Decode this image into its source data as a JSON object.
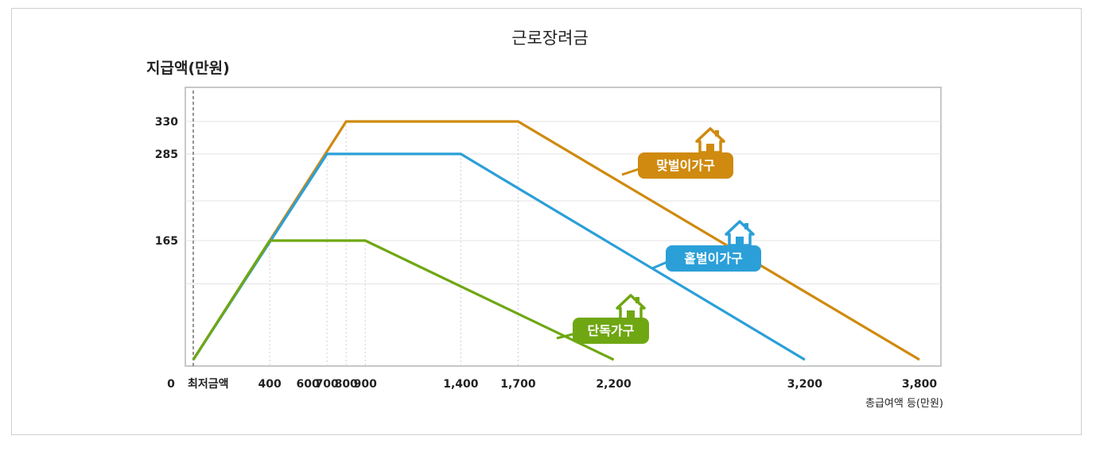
{
  "chart_data": {
    "type": "line",
    "title": "근로장려금",
    "ylabel": "지급액(만원)",
    "xlabel": "총급여액 등(만원)",
    "x_origin_label": "0",
    "x_min_label": "최저금액",
    "xlim": [
      0,
      3800
    ],
    "ylim": [
      0,
      330
    ],
    "y_ticks": [
      {
        "value": 330,
        "label": "330"
      },
      {
        "value": 285,
        "label": "285"
      },
      {
        "value": 165,
        "label": "165"
      }
    ],
    "x_ticks": [
      {
        "value": 400,
        "label": "400"
      },
      {
        "value": 600,
        "label": "600"
      },
      {
        "value": 700,
        "label": "700"
      },
      {
        "value": 800,
        "label": "800"
      },
      {
        "value": 900,
        "label": "900"
      },
      {
        "value": 1400,
        "label": "1,400"
      },
      {
        "value": 1700,
        "label": "1,700"
      },
      {
        "value": 2200,
        "label": "2,200"
      },
      {
        "value": 3200,
        "label": "3,200"
      },
      {
        "value": 3800,
        "label": "3,800"
      }
    ],
    "series": [
      {
        "name": "맞벌이가구",
        "color": "#cf8a0f",
        "points": [
          [
            0,
            0
          ],
          [
            800,
            330
          ],
          [
            1700,
            330
          ],
          [
            3800,
            0
          ]
        ]
      },
      {
        "name": "홑벌이가구",
        "color": "#2b9fd8",
        "points": [
          [
            0,
            0
          ],
          [
            700,
            285
          ],
          [
            1400,
            285
          ],
          [
            3200,
            0
          ]
        ]
      },
      {
        "name": "단독가구",
        "color": "#6fa713",
        "points": [
          [
            0,
            0
          ],
          [
            400,
            165
          ],
          [
            900,
            165
          ],
          [
            2200,
            0
          ]
        ]
      }
    ],
    "grid": true
  }
}
